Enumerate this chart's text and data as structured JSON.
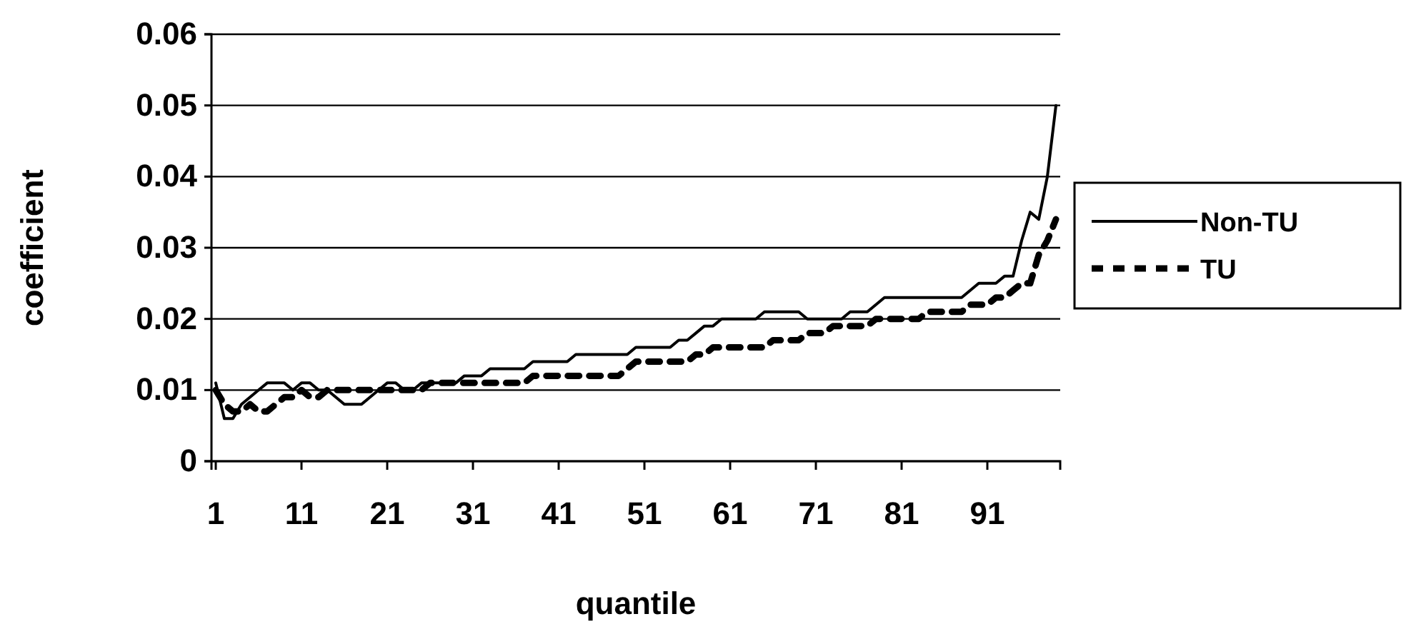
{
  "chart_data": {
    "type": "line",
    "xlabel": "quantile",
    "ylabel": "coefficient",
    "categories": [
      "1",
      null,
      null,
      null,
      null,
      null,
      null,
      null,
      null,
      null,
      "11",
      null,
      null,
      null,
      null,
      null,
      null,
      null,
      null,
      null,
      "21",
      null,
      null,
      null,
      null,
      null,
      null,
      null,
      null,
      null,
      "31",
      null,
      null,
      null,
      null,
      null,
      null,
      null,
      null,
      null,
      "41",
      null,
      null,
      null,
      null,
      null,
      null,
      null,
      null,
      null,
      "51",
      null,
      null,
      null,
      null,
      null,
      null,
      null,
      null,
      null,
      "61",
      null,
      null,
      null,
      null,
      null,
      null,
      null,
      null,
      null,
      "71",
      null,
      null,
      null,
      null,
      null,
      null,
      null,
      null,
      null,
      "81",
      null,
      null,
      null,
      null,
      null,
      null,
      null,
      null,
      null,
      "91",
      null,
      null,
      null,
      null,
      null,
      null,
      null,
      null
    ],
    "series": [
      {
        "name": "Non-TU",
        "color": "#000000",
        "line_style": "solid",
        "values": [
          0.011,
          0.006,
          0.006,
          0.008,
          0.009,
          0.01,
          0.011,
          0.011,
          0.011,
          0.01,
          0.011,
          0.011,
          0.01,
          0.01,
          0.009,
          0.008,
          0.008,
          0.008,
          0.009,
          0.01,
          0.011,
          0.011,
          0.01,
          0.01,
          0.011,
          0.011,
          0.011,
          0.011,
          0.011,
          0.012,
          0.012,
          0.012,
          0.013,
          0.013,
          0.013,
          0.013,
          0.013,
          0.014,
          0.014,
          0.014,
          0.014,
          0.014,
          0.015,
          0.015,
          0.015,
          0.015,
          0.015,
          0.015,
          0.015,
          0.016,
          0.016,
          0.016,
          0.016,
          0.016,
          0.017,
          0.017,
          0.018,
          0.019,
          0.019,
          0.02,
          0.02,
          0.02,
          0.02,
          0.02,
          0.021,
          0.021,
          0.021,
          0.021,
          0.021,
          0.02,
          0.02,
          0.02,
          0.02,
          0.02,
          0.021,
          0.021,
          0.021,
          0.022,
          0.023,
          0.023,
          0.023,
          0.023,
          0.023,
          0.023,
          0.023,
          0.023,
          0.023,
          0.023,
          0.024,
          0.025,
          0.025,
          0.025,
          0.026,
          0.026,
          0.031,
          0.035,
          0.034,
          0.04,
          0.05
        ]
      },
      {
        "name": "TU",
        "color": "#000000",
        "line_style": "dashed",
        "values": [
          0.01,
          0.008,
          0.007,
          0.007,
          0.008,
          0.007,
          0.007,
          0.008,
          0.009,
          0.009,
          0.01,
          0.009,
          0.009,
          0.01,
          0.01,
          0.01,
          0.01,
          0.01,
          0.01,
          0.01,
          0.01,
          0.01,
          0.01,
          0.01,
          0.01,
          0.011,
          0.011,
          0.011,
          0.011,
          0.011,
          0.011,
          0.011,
          0.011,
          0.011,
          0.011,
          0.011,
          0.011,
          0.012,
          0.012,
          0.012,
          0.012,
          0.012,
          0.012,
          0.012,
          0.012,
          0.012,
          0.012,
          0.012,
          0.013,
          0.014,
          0.014,
          0.014,
          0.014,
          0.014,
          0.014,
          0.014,
          0.015,
          0.015,
          0.016,
          0.016,
          0.016,
          0.016,
          0.016,
          0.016,
          0.016,
          0.017,
          0.017,
          0.017,
          0.017,
          0.018,
          0.018,
          0.018,
          0.019,
          0.019,
          0.019,
          0.019,
          0.019,
          0.02,
          0.02,
          0.02,
          0.02,
          0.02,
          0.02,
          0.021,
          0.021,
          0.021,
          0.021,
          0.021,
          0.022,
          0.022,
          0.022,
          0.023,
          0.023,
          0.024,
          0.025,
          0.025,
          0.029,
          0.031,
          0.034
        ]
      }
    ],
    "ylim": [
      0,
      0.06
    ],
    "yticks": [
      0,
      0.01,
      0.02,
      0.03,
      0.04,
      0.05,
      0.06
    ],
    "grid": "y",
    "legend": "right"
  }
}
